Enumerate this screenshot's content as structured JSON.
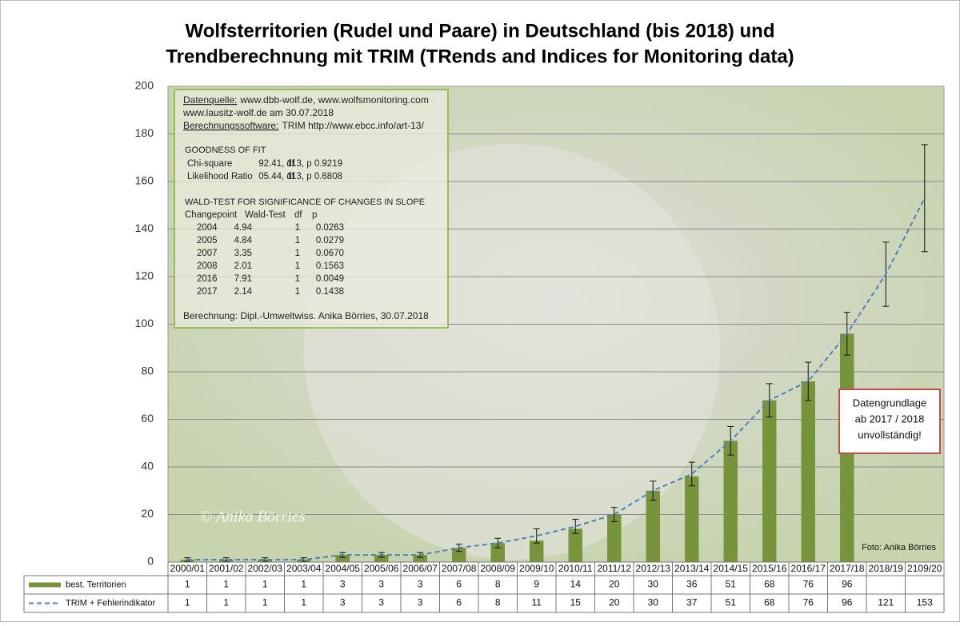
{
  "chart_data": {
    "type": "bar",
    "title": [
      "Wolfsterritorien (Rudel und Paare) in Deutschland (bis 2018) und",
      "Trendberechnung mit TRIM (TRends and Indices for Monitoring data)"
    ],
    "categories": [
      "2000/01",
      "2001/02",
      "2002/03",
      "2003/04",
      "2004/05",
      "2005/06",
      "2006/07",
      "2007/08",
      "2008/09",
      "2009/10",
      "2010/11",
      "2011/12",
      "2012/13",
      "2013/14",
      "2014/15",
      "2015/16",
      "2016/17",
      "2017/18",
      "2018/19",
      "2109/20"
    ],
    "series": [
      {
        "name": "best. Territorien",
        "color": "#77933c",
        "values": [
          1,
          1,
          1,
          1,
          3,
          3,
          3,
          6,
          8,
          9,
          14,
          20,
          30,
          36,
          51,
          68,
          76,
          96,
          null,
          null
        ]
      },
      {
        "name": "TRIM + Fehlerindikator",
        "color": "#4f81bd",
        "type": "line",
        "values": [
          1,
          1,
          1,
          1,
          3,
          3,
          3,
          6,
          8,
          11,
          15,
          20,
          30,
          37,
          51,
          68,
          76,
          96,
          121,
          153
        ],
        "errors": [
          0.8,
          0.8,
          0.8,
          0.8,
          1,
          1,
          1,
          1.5,
          2,
          3,
          3,
          3,
          4,
          5,
          6,
          7,
          8,
          9,
          13.5,
          22.5
        ]
      }
    ],
    "ylim": [
      0,
      200
    ],
    "yticks": [
      0,
      20,
      40,
      60,
      80,
      100,
      120,
      140,
      160,
      180,
      200
    ],
    "grid": true,
    "info_box": {
      "sources": [
        {
          "label": "Datenquelle:",
          "text": "www.dbb-wolf.de,  www.wolfsmonitoring.com"
        },
        {
          "text": "www.lausitz-wolf.de am 30.07.2018"
        },
        {
          "label": "Berechnungssoftware:",
          "text": "TRIM  http://www.ebcc.info/art-13/"
        }
      ],
      "gof_title": "GOODNESS OF FIT",
      "gof_rows": [
        [
          "Chi-square",
          "92.41, df",
          "113, p 0.9219"
        ],
        [
          "Likelihood  Ratio",
          "05.44, df",
          "113, p 0.6808"
        ]
      ],
      "wald_title": "WALD-TEST FOR SIGNIFICANCE OF CHANGES IN SLOPE",
      "wald_header": [
        "Changepoint",
        "Wald-Test",
        "df",
        "p"
      ],
      "wald_rows": [
        [
          "2004",
          "4.94",
          "1",
          "0.0263"
        ],
        [
          "2005",
          "4.84",
          "1",
          "0.0279"
        ],
        [
          "2007",
          "3.35",
          "1",
          "0.0670"
        ],
        [
          "2008",
          "2.01",
          "1",
          "0.1563"
        ],
        [
          "2016",
          "7.91",
          "1",
          "0.0049"
        ],
        [
          "2017",
          "2.14",
          "1",
          "0.1438"
        ]
      ],
      "footer": "Berechnung: Dipl.-Umweltwiss. Anika Börries, 30.07.2018"
    },
    "note": [
      "Datengrundlage",
      "ab 2017 / 2018",
      "unvollständig!"
    ],
    "photo_credit": "Foto: Anika Börries",
    "watermark": "© Anika Börries"
  }
}
